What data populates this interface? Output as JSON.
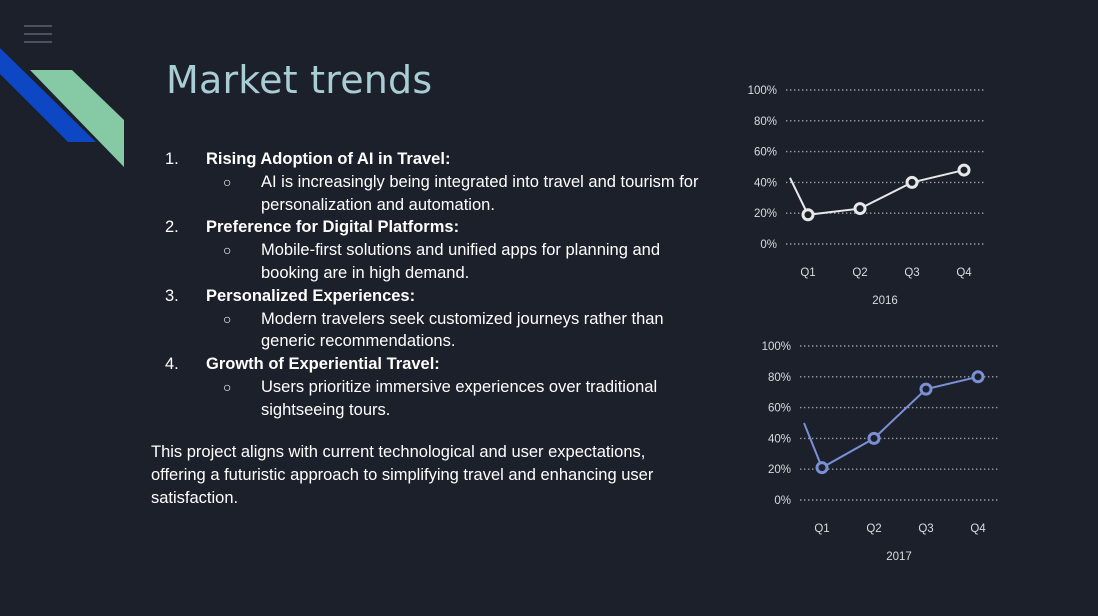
{
  "slide": {
    "title": "Market trends",
    "trends": [
      {
        "number": "1.",
        "heading": "Rising Adoption of AI in Travel:",
        "detail": "AI is increasingly being integrated into travel and tourism for personalization and automation."
      },
      {
        "number": "2.",
        "heading": "Preference for Digital Platforms:",
        "detail": "Mobile-first solutions and unified apps for planning and booking are in high demand."
      },
      {
        "number": "3.",
        "heading": "Personalized Experiences:",
        "detail": "Modern travelers seek customized journeys rather than generic recommendations."
      },
      {
        "number": "4.",
        "heading": "Growth of Experiential Travel:",
        "detail": "Users prioritize immersive experiences over traditional sightseeing tours."
      }
    ],
    "bullet_glyph": "○",
    "summary": "This project aligns with current technological and user expectations, offering a futuristic approach to simplifying travel and enhancing user satisfaction.",
    "colors": {
      "background": "#1b202a",
      "title": "#a9cdd4",
      "deco_blue": "#0d47c4",
      "deco_green": "#86c9a5"
    }
  },
  "chart_data": [
    {
      "type": "line",
      "title": "",
      "xlabel": "2016",
      "ylabel": "",
      "categories": [
        "Q1",
        "Q2",
        "Q3",
        "Q4"
      ],
      "yticks": [
        "0%",
        "20%",
        "40%",
        "60%",
        "80%",
        "100%"
      ],
      "ylim": [
        0,
        100
      ],
      "grid": true,
      "series": [
        {
          "values": [
            19,
            23,
            40,
            48
          ],
          "color": "#e8e8e8"
        }
      ],
      "lead_in_value": 43
    },
    {
      "type": "line",
      "title": "",
      "xlabel": "2017",
      "ylabel": "",
      "categories": [
        "Q1",
        "Q2",
        "Q3",
        "Q4"
      ],
      "yticks": [
        "0%",
        "20%",
        "40%",
        "60%",
        "80%",
        "100%"
      ],
      "ylim": [
        0,
        100
      ],
      "grid": true,
      "series": [
        {
          "values": [
            21,
            40,
            72,
            80
          ],
          "color": "#7b8fd6"
        }
      ],
      "lead_in_value": 50
    }
  ]
}
